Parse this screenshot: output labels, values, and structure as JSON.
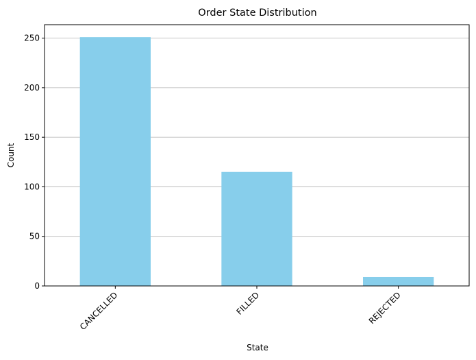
{
  "chart_data": {
    "type": "bar",
    "title": "Order State Distribution",
    "xlabel": "State",
    "ylabel": "Count",
    "categories": [
      "CANCELLED",
      "FILLED",
      "REJECTED"
    ],
    "values": [
      251,
      115,
      9
    ],
    "ylim": [
      0,
      263.55
    ],
    "yticks": [
      0,
      50,
      100,
      150,
      200,
      250
    ],
    "grid": "y-major",
    "bar_color": "#87ceeb",
    "xtick_rotation": 45
  }
}
